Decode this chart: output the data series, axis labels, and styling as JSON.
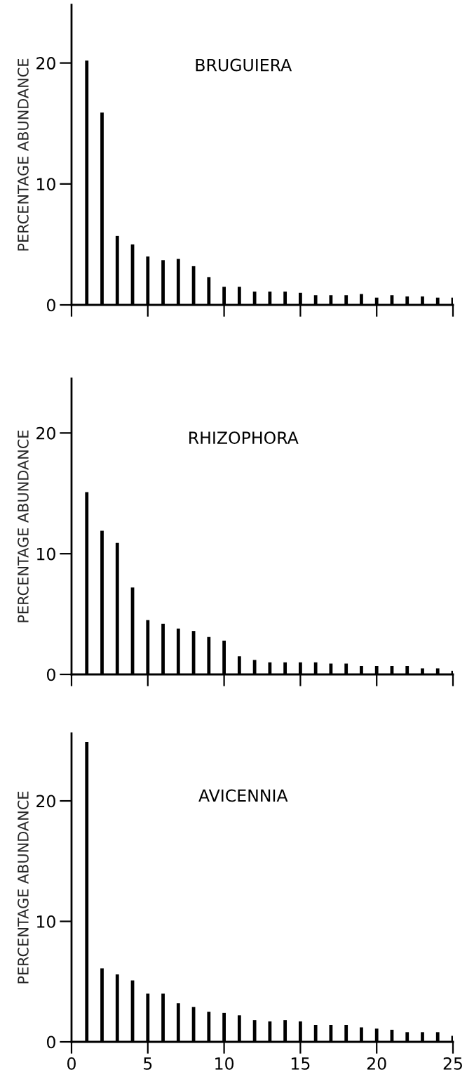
{
  "chart_data": [
    {
      "type": "bar",
      "title": "BRUGUIERA",
      "ylabel": "PERCENTAGE ABUNDANCE",
      "color": "#000000",
      "x": [
        1,
        2,
        3,
        4,
        5,
        6,
        7,
        8,
        9,
        10,
        11,
        12,
        13,
        14,
        15,
        16,
        17,
        18,
        19,
        20,
        21,
        22,
        23,
        24,
        25
      ],
      "values": [
        20.2,
        15.9,
        5.7,
        5.0,
        4.0,
        3.7,
        3.8,
        3.2,
        2.3,
        1.5,
        1.5,
        1.1,
        1.1,
        1.1,
        1.0,
        0.8,
        0.8,
        0.8,
        0.9,
        0.6,
        0.8,
        0.7,
        0.7,
        0.6,
        0.6
      ],
      "xlim": [
        0,
        25
      ],
      "xticks": [
        {
          "value": 0,
          "label": null
        },
        {
          "value": 5,
          "label": null
        },
        {
          "value": 10,
          "label": null
        },
        {
          "value": 15,
          "label": null
        },
        {
          "value": 20,
          "label": null
        },
        {
          "value": 25,
          "label": null
        }
      ],
      "ylim": [
        0,
        24.8
      ],
      "yticks": [
        0,
        10,
        20
      ],
      "tick_labels": "y",
      "grid": false
    },
    {
      "type": "bar",
      "title": "RHIZOPHORA",
      "ylabel": "PERCENTAGE ABUNDANCE",
      "color": "#000000",
      "x": [
        1,
        2,
        3,
        4,
        5,
        6,
        7,
        8,
        9,
        10,
        11,
        12,
        13,
        14,
        15,
        16,
        17,
        18,
        19,
        20,
        21,
        22,
        23,
        24,
        25
      ],
      "values": [
        15.1,
        11.9,
        10.9,
        7.2,
        4.5,
        4.2,
        3.8,
        3.6,
        3.1,
        2.8,
        1.5,
        1.2,
        1.0,
        1.0,
        1.0,
        1.0,
        0.9,
        0.9,
        0.7,
        0.7,
        0.7,
        0.7,
        0.5,
        0.5,
        0.3
      ],
      "xlim": [
        0,
        25
      ],
      "xticks": [
        {
          "value": 0,
          "label": null
        },
        {
          "value": 5,
          "label": null
        },
        {
          "value": 10,
          "label": null
        },
        {
          "value": 15,
          "label": null
        },
        {
          "value": 20,
          "label": null
        },
        {
          "value": 25,
          "label": null
        }
      ],
      "ylim": [
        0,
        24.5
      ],
      "yticks": [
        0,
        10,
        20
      ],
      "tick_labels": "y",
      "grid": false
    },
    {
      "type": "bar",
      "title": "AVICENNIA",
      "ylabel": "PERCENTAGE ABUNDANCE",
      "color": "#000000",
      "x": [
        1,
        2,
        3,
        4,
        5,
        6,
        7,
        8,
        9,
        10,
        11,
        12,
        13,
        14,
        15,
        16,
        17,
        18,
        19,
        20,
        21,
        22,
        23,
        24,
        25
      ],
      "values": [
        24.9,
        6.1,
        5.6,
        5.1,
        4.0,
        4.0,
        3.2,
        2.9,
        2.5,
        2.4,
        2.2,
        1.8,
        1.7,
        1.8,
        1.7,
        1.4,
        1.4,
        1.4,
        1.2,
        1.1,
        1.0,
        0.8,
        0.8,
        0.8,
        0.5
      ],
      "xlim": [
        0,
        25
      ],
      "xticks": [
        0,
        5,
        10,
        15,
        20,
        25
      ],
      "ylim": [
        0,
        25.6
      ],
      "yticks": [
        0,
        10,
        20
      ],
      "grid": false
    }
  ]
}
